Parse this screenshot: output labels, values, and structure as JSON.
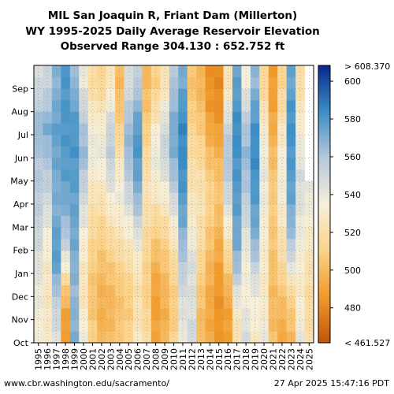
{
  "chart_data": {
    "type": "heatmap",
    "title_lines": [
      "MIL San Joaquin R, Friant Dam (Millerton)",
      "WY 1995-2025 Daily Average Reservoir Elevation",
      "Observed Range 304.130 : 652.752 ft"
    ],
    "xlabel": "",
    "ylabel": "",
    "x_categories": [
      "1995",
      "1996",
      "1997",
      "1998",
      "1999",
      "2000",
      "2001",
      "2002",
      "2003",
      "2004",
      "2005",
      "2006",
      "2007",
      "2008",
      "2009",
      "2010",
      "2011",
      "2012",
      "2013",
      "2014",
      "2015",
      "2016",
      "2017",
      "2018",
      "2019",
      "2020",
      "2021",
      "2022",
      "2023",
      "2024",
      "2025"
    ],
    "y_month_ticks": [
      "Oct",
      "Nov",
      "Dec",
      "Jan",
      "Feb",
      "Mar",
      "Apr",
      "May",
      "Jun",
      "Jul",
      "Aug",
      "Sep"
    ],
    "colorbar": {
      "min": 461.527,
      "max": 608.37,
      "top_label": "> 608.370",
      "bottom_label": "< 461.527",
      "tick_values": [
        480,
        500,
        520,
        540,
        560,
        580,
        600
      ],
      "colors": [
        "#c0550a",
        "#f09a2a",
        "#fbd38b",
        "#f6efd9",
        "#b5c8dc",
        "#3b8ec4",
        "#08278f"
      ]
    },
    "grid": true,
    "series": [
      {
        "year": "1995",
        "profile": [
          535,
          537,
          540,
          543,
          548,
          553,
          556,
          558,
          560,
          566,
          556,
          548
        ]
      },
      {
        "year": "1996",
        "profile": [
          530,
          528,
          527,
          529,
          534,
          540,
          549,
          556,
          563,
          571,
          560,
          552
        ]
      },
      {
        "year": "1997",
        "profile": [
          545,
          550,
          560,
          575,
          578,
          572,
          570,
          572,
          574,
          576,
          572,
          568
        ]
      },
      {
        "year": "1998",
        "profile": [
          486,
          490,
          505,
          532,
          553,
          565,
          572,
          577,
          579,
          580,
          580,
          580
        ]
      },
      {
        "year": "1999",
        "profile": [
          570,
          568,
          566,
          569,
          572,
          574,
          576,
          578,
          580,
          580,
          575,
          566
        ]
      },
      {
        "year": "2000",
        "profile": [
          540,
          530,
          526,
          528,
          533,
          540,
          548,
          556,
          566,
          560,
          550,
          540
        ]
      },
      {
        "year": "2001",
        "profile": [
          510,
          506,
          505,
          508,
          513,
          518,
          524,
          532,
          540,
          536,
          526,
          518
        ]
      },
      {
        "year": "2002",
        "profile": [
          498,
          496,
          497,
          502,
          508,
          515,
          524,
          532,
          540,
          534,
          523,
          513
        ]
      },
      {
        "year": "2003",
        "profile": [
          502,
          498,
          500,
          506,
          515,
          525,
          536,
          548,
          555,
          552,
          540,
          528
        ]
      },
      {
        "year": "2004",
        "profile": [
          508,
          504,
          505,
          512,
          520,
          530,
          538,
          532,
          522,
          512,
          504,
          500
        ]
      },
      {
        "year": "2005",
        "profile": [
          512,
          508,
          510,
          518,
          528,
          538,
          548,
          557,
          565,
          565,
          555,
          545
        ]
      },
      {
        "year": "2006",
        "profile": [
          528,
          524,
          522,
          528,
          538,
          552,
          566,
          575,
          580,
          578,
          568,
          556
        ]
      },
      {
        "year": "2007",
        "profile": [
          520,
          514,
          510,
          512,
          515,
          520,
          524,
          522,
          516,
          510,
          504,
          500
        ]
      },
      {
        "year": "2008",
        "profile": [
          492,
          489,
          490,
          496,
          505,
          515,
          526,
          534,
          540,
          532,
          520,
          510
        ]
      },
      {
        "year": "2009",
        "profile": [
          498,
          496,
          498,
          503,
          510,
          520,
          532,
          542,
          552,
          548,
          536,
          524
        ]
      },
      {
        "year": "2010",
        "profile": [
          512,
          508,
          510,
          516,
          525,
          537,
          550,
          562,
          570,
          572,
          566,
          560
        ]
      },
      {
        "year": "2011",
        "profile": [
          540,
          542,
          548,
          556,
          564,
          572,
          578,
          582,
          584,
          585,
          580,
          572
        ]
      },
      {
        "year": "2012",
        "profile": [
          550,
          545,
          544,
          546,
          540,
          532,
          526,
          522,
          518,
          514,
          508,
          504
        ]
      },
      {
        "year": "2013",
        "profile": [
          500,
          502,
          506,
          512,
          518,
          522,
          524,
          520,
          514,
          508,
          502,
          498
        ]
      },
      {
        "year": "2014",
        "profile": [
          494,
          492,
          494,
          498,
          503,
          508,
          512,
          508,
          500,
          492,
          486,
          484
        ]
      },
      {
        "year": "2015",
        "profile": [
          486,
          484,
          485,
          489,
          494,
          500,
          505,
          503,
          496,
          488,
          482,
          481
        ]
      },
      {
        "year": "2016",
        "profile": [
          488,
          490,
          496,
          508,
          522,
          536,
          548,
          556,
          560,
          552,
          538,
          524
        ]
      },
      {
        "year": "2017",
        "profile": [
          520,
          530,
          545,
          562,
          572,
          575,
          578,
          580,
          582,
          584,
          580,
          576
        ]
      },
      {
        "year": "2018",
        "profile": [
          548,
          540,
          535,
          536,
          540,
          548,
          556,
          562,
          566,
          560,
          548,
          536
        ]
      },
      {
        "year": "2019",
        "profile": [
          530,
          534,
          540,
          552,
          566,
          574,
          578,
          582,
          584,
          582,
          575,
          566
        ]
      },
      {
        "year": "2020",
        "profile": [
          540,
          532,
          528,
          530,
          532,
          535,
          538,
          540,
          538,
          532,
          522,
          514
        ]
      },
      {
        "year": "2021",
        "profile": [
          502,
          500,
          501,
          503,
          505,
          507,
          508,
          505,
          500,
          494,
          490,
          488
        ]
      },
      {
        "year": "2022",
        "profile": [
          494,
          498,
          506,
          516,
          522,
          528,
          534,
          536,
          534,
          528,
          520,
          514
        ]
      },
      {
        "year": "2023",
        "profile": [
          500,
          506,
          516,
          540,
          558,
          568,
          574,
          578,
          580,
          582,
          580,
          574
        ]
      },
      {
        "year": "2024",
        "profile": [
          540,
          534,
          530,
          532,
          536,
          540,
          544,
          546,
          540,
          534,
          526,
          520
        ]
      },
      {
        "year": "2025",
        "profile": [
          520,
          518,
          519,
          522,
          528,
          534,
          540,
          null,
          null,
          null,
          null,
          null
        ]
      }
    ]
  },
  "footer": {
    "source": "www.cbr.washington.edu/sacramento/",
    "timestamp": "27 Apr 2025 15:47:16 PDT"
  }
}
